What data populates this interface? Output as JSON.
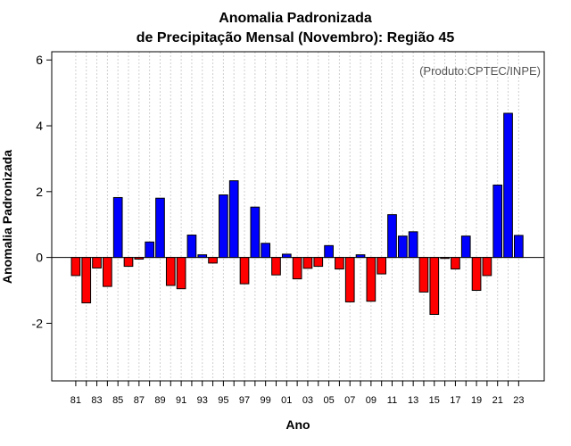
{
  "chart_data": {
    "type": "bar",
    "title": "Anomalia Padronizada",
    "subtitle": "de Precipitação Mensal (Novembro): Região 45",
    "xlabel": "Ano",
    "ylabel": "Anomalia Padronizada",
    "annotation": "(Produto:CPTEC/INPE)",
    "ylim": [
      -3.75,
      6.25
    ],
    "yticks": [
      -2,
      0,
      2,
      4,
      6
    ],
    "ytick_labels": [
      "-2",
      "0",
      "2",
      "4",
      "6"
    ],
    "categories": [
      "1981",
      "1982",
      "1983",
      "1984",
      "1985",
      "1986",
      "1987",
      "1988",
      "1989",
      "1990",
      "1991",
      "1992",
      "1993",
      "1994",
      "1995",
      "1996",
      "1997",
      "1998",
      "1999",
      "2000",
      "2001",
      "2002",
      "2003",
      "2004",
      "2005",
      "2006",
      "2007",
      "2008",
      "2009",
      "2010",
      "2011",
      "2012",
      "2013",
      "2014",
      "2015",
      "2016",
      "2017",
      "2018",
      "2019",
      "2020",
      "2021",
      "2022",
      "2023"
    ],
    "xtick_labels": [
      "81",
      "83",
      "85",
      "87",
      "89",
      "91",
      "93",
      "95",
      "97",
      "99",
      "01",
      "03",
      "05",
      "07",
      "09",
      "11",
      "13",
      "15",
      "17",
      "19",
      "21",
      "23"
    ],
    "values": [
      -0.55,
      -1.38,
      -0.32,
      -0.88,
      1.82,
      -0.27,
      -0.05,
      0.47,
      1.8,
      -0.85,
      -0.95,
      0.68,
      0.08,
      -0.17,
      1.9,
      2.33,
      -0.8,
      1.53,
      0.43,
      -0.53,
      0.1,
      -0.65,
      -0.33,
      -0.27,
      0.36,
      -0.35,
      -1.35,
      0.08,
      -1.33,
      -0.5,
      1.3,
      0.65,
      0.78,
      -1.05,
      -1.73,
      -0.03,
      -0.35,
      0.65,
      -1.0,
      -0.55,
      2.2,
      4.38,
      0.67
    ],
    "positive_color": "#0000ff",
    "negative_color": "#ff0000",
    "grid": "vertical dotted"
  }
}
